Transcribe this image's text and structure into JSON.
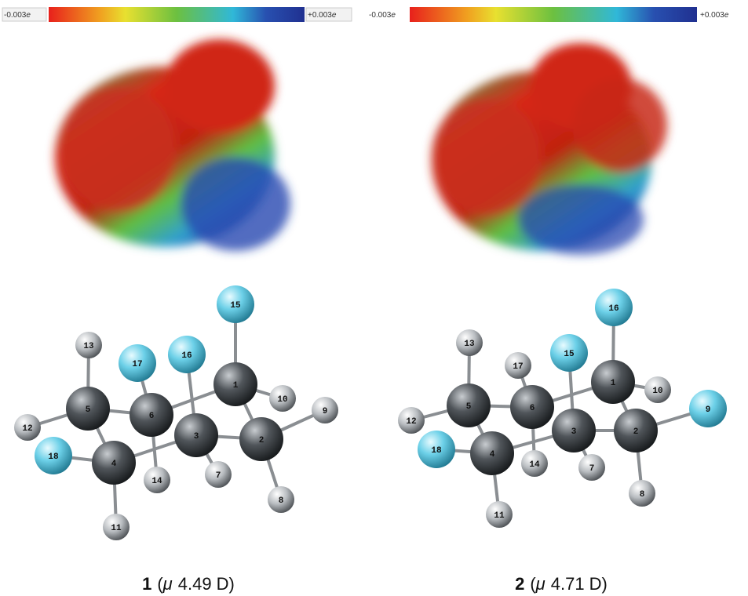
{
  "panels": [
    {
      "colorbar": {
        "min": "-0.003",
        "max": "+0.003",
        "unit": "e"
      },
      "atoms": [
        "15",
        "13",
        "17",
        "16",
        "1",
        "10",
        "9",
        "5",
        "6",
        "12",
        "3",
        "2",
        "18",
        "4",
        "14",
        "7",
        "8",
        "11"
      ],
      "caption": {
        "number": "1",
        "prefix": "(",
        "symbol": "μ",
        "value": "4.49 D)"
      }
    },
    {
      "colorbar": {
        "min": "-0.003",
        "max": "+0.003",
        "unit": "e"
      },
      "atoms": [
        "16",
        "13",
        "17",
        "15",
        "1",
        "10",
        "9",
        "5",
        "6",
        "12",
        "3",
        "2",
        "18",
        "4",
        "14",
        "7",
        "8",
        "11"
      ],
      "caption": {
        "number": "2",
        "prefix": "(",
        "symbol": "μ",
        "value": "4.71 D)"
      }
    }
  ]
}
